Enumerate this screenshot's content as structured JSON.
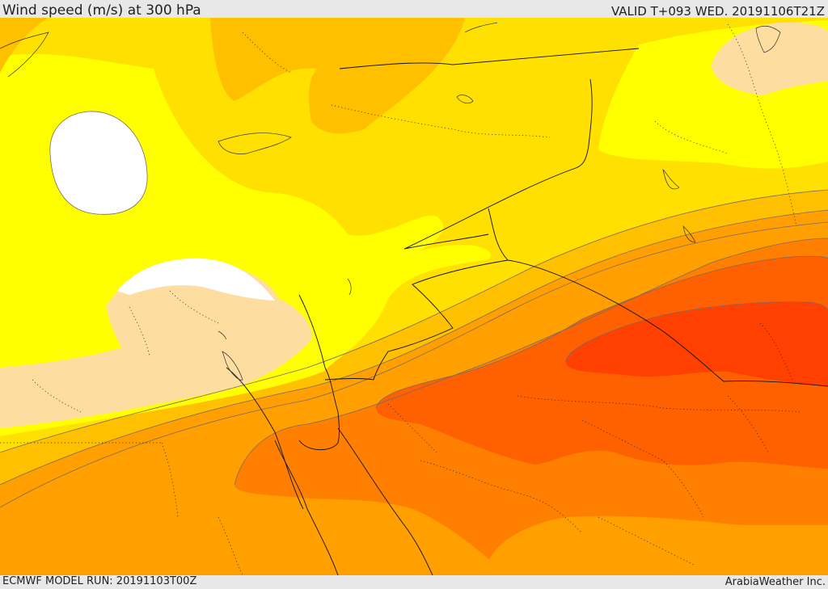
{
  "header": {
    "title": "Wind speed (m/s) at 300 hPa",
    "valid_time": "VALID T+093 WED. 20191106T21Z"
  },
  "footer": {
    "model_run": "ECMWF MODEL RUN: 20191103T00Z",
    "credit": "ArabiaWeather Inc."
  },
  "map": {
    "field": "wind speed",
    "level": "300 hPa",
    "region": "Eastern Mediterranean, Egypt, Levant and Arabian Peninsula",
    "colors": {
      "calm": "#ffffff",
      "light": "#fddda0",
      "band_1": "#ffff00",
      "band_2": "#ffe000",
      "band_3": "#ffc000",
      "band_4": "#ffa000",
      "band_5": "#ff8000",
      "band_6": "#ff6000",
      "band_7": "#ff4000"
    }
  }
}
